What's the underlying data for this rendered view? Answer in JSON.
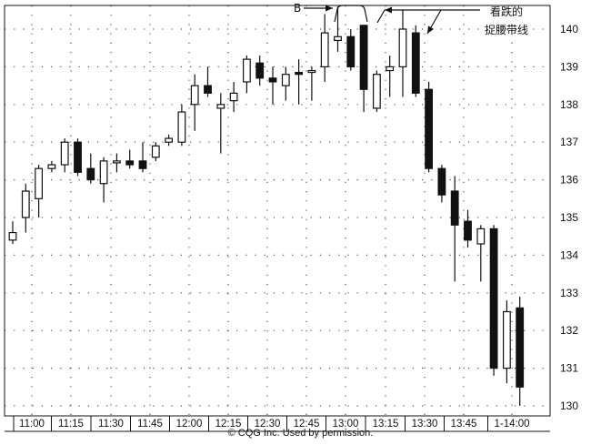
{
  "chart_data": {
    "type": "candlestick",
    "y_ticks": [
      130,
      131,
      132,
      133,
      134,
      135,
      136,
      137,
      138,
      139,
      140
    ],
    "ylim": [
      129.7,
      140.6
    ],
    "x_tick_labels": [
      "11:00",
      "11:15",
      "11:30",
      "11:45",
      "12:00",
      "12:15",
      "12:30",
      "12:45",
      "13:00",
      "13:15",
      "13:30",
      "13:45",
      "1-14:00"
    ],
    "grid": true,
    "candles": [
      {
        "o": 134.4,
        "h": 134.9,
        "l": 134.3,
        "c": 134.6
      },
      {
        "o": 135.0,
        "h": 135.9,
        "l": 134.6,
        "c": 135.7
      },
      {
        "o": 135.5,
        "h": 136.4,
        "l": 135.0,
        "c": 136.3
      },
      {
        "o": 136.3,
        "h": 136.5,
        "l": 136.2,
        "c": 136.4
      },
      {
        "o": 136.4,
        "h": 137.1,
        "l": 136.2,
        "c": 137.0
      },
      {
        "o": 137.0,
        "h": 137.1,
        "l": 136.1,
        "c": 136.2
      },
      {
        "o": 136.3,
        "h": 136.7,
        "l": 135.9,
        "c": 136.0
      },
      {
        "o": 135.9,
        "h": 136.6,
        "l": 135.4,
        "c": 136.5
      },
      {
        "o": 136.45,
        "h": 136.7,
        "l": 136.2,
        "c": 136.5
      },
      {
        "o": 136.5,
        "h": 136.8,
        "l": 136.3,
        "c": 136.4
      },
      {
        "o": 136.5,
        "h": 137.0,
        "l": 136.2,
        "c": 136.3
      },
      {
        "o": 136.6,
        "h": 137.0,
        "l": 136.5,
        "c": 136.9
      },
      {
        "o": 137.0,
        "h": 137.2,
        "l": 136.9,
        "c": 137.1
      },
      {
        "o": 137.0,
        "h": 138.0,
        "l": 136.9,
        "c": 137.8
      },
      {
        "o": 138.0,
        "h": 138.8,
        "l": 137.3,
        "c": 138.5
      },
      {
        "o": 138.5,
        "h": 139.0,
        "l": 138.2,
        "c": 138.3
      },
      {
        "o": 137.9,
        "h": 138.3,
        "l": 136.7,
        "c": 138.0
      },
      {
        "o": 138.1,
        "h": 138.6,
        "l": 137.8,
        "c": 138.3
      },
      {
        "o": 138.6,
        "h": 139.3,
        "l": 138.3,
        "c": 139.2
      },
      {
        "o": 139.1,
        "h": 139.3,
        "l": 138.5,
        "c": 138.7
      },
      {
        "o": 138.7,
        "h": 139.0,
        "l": 138.0,
        "c": 138.6
      },
      {
        "o": 138.5,
        "h": 139.0,
        "l": 138.1,
        "c": 138.8
      },
      {
        "o": 138.85,
        "h": 139.2,
        "l": 138.0,
        "c": 138.8
      },
      {
        "o": 138.9,
        "h": 139.0,
        "l": 138.1,
        "c": 138.9
      },
      {
        "o": 139.0,
        "h": 140.4,
        "l": 138.6,
        "c": 139.9
      },
      {
        "o": 139.7,
        "h": 140.6,
        "l": 139.4,
        "c": 139.8
      },
      {
        "o": 139.8,
        "h": 140.0,
        "l": 138.9,
        "c": 139.0
      },
      {
        "o": 140.1,
        "h": 140.1,
        "l": 137.8,
        "c": 138.4
      },
      {
        "o": 137.9,
        "h": 138.9,
        "l": 137.8,
        "c": 138.8
      },
      {
        "o": 138.9,
        "h": 139.3,
        "l": 138.2,
        "c": 139.0
      },
      {
        "o": 139.0,
        "h": 140.5,
        "l": 138.2,
        "c": 140.0
      },
      {
        "o": 139.9,
        "h": 140.1,
        "l": 138.2,
        "c": 138.3
      },
      {
        "o": 138.4,
        "h": 138.6,
        "l": 136.2,
        "c": 136.3
      },
      {
        "o": 136.3,
        "h": 136.4,
        "l": 135.4,
        "c": 135.6
      },
      {
        "o": 135.7,
        "h": 136.1,
        "l": 133.3,
        "c": 134.8
      },
      {
        "o": 134.9,
        "h": 135.2,
        "l": 134.2,
        "c": 134.4
      },
      {
        "o": 134.3,
        "h": 134.8,
        "l": 133.3,
        "c": 134.7
      },
      {
        "o": 134.7,
        "h": 134.8,
        "l": 130.8,
        "c": 131.0
      },
      {
        "o": 131.0,
        "h": 132.8,
        "l": 130.6,
        "c": 132.5
      },
      {
        "o": 132.6,
        "h": 132.9,
        "l": 130.0,
        "c": 130.5
      }
    ]
  },
  "annotations": {
    "b_label": "B",
    "callout_line1": "看跌的",
    "callout_line2": "捉腰带线"
  },
  "caption": "© CQG Inc. Used by permission."
}
